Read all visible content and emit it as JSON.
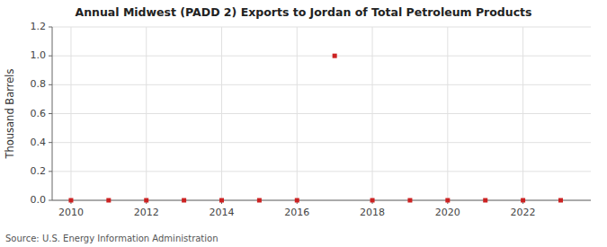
{
  "chart_data": {
    "type": "scatter",
    "title": "Annual Midwest (PADD 2) Exports to Jordan of Total Petroleum Products",
    "ylabel": "Thousand Barrels",
    "annotations": [
      "Source: U.S. Energy Information Administration"
    ],
    "x": [
      2010,
      2011,
      2012,
      2013,
      2014,
      2015,
      2016,
      2017,
      2018,
      2019,
      2020,
      2021,
      2022,
      2023
    ],
    "values": [
      0,
      0,
      0,
      0,
      0,
      0,
      0,
      1.0,
      0,
      0,
      0,
      0,
      0,
      0
    ],
    "xlim": [
      2009.5,
      2023.8
    ],
    "ylim": [
      0.0,
      1.2
    ],
    "xticks": [
      2010,
      2012,
      2014,
      2016,
      2018,
      2020,
      2022
    ],
    "yticks": [
      {
        "value": 0.0,
        "label": "0.0"
      },
      0.2,
      0.4,
      0.6,
      0.8,
      {
        "value": 1.0,
        "label": "1.0"
      },
      1.2
    ],
    "color": "#cc2222",
    "marker": "square",
    "grid": true
  }
}
